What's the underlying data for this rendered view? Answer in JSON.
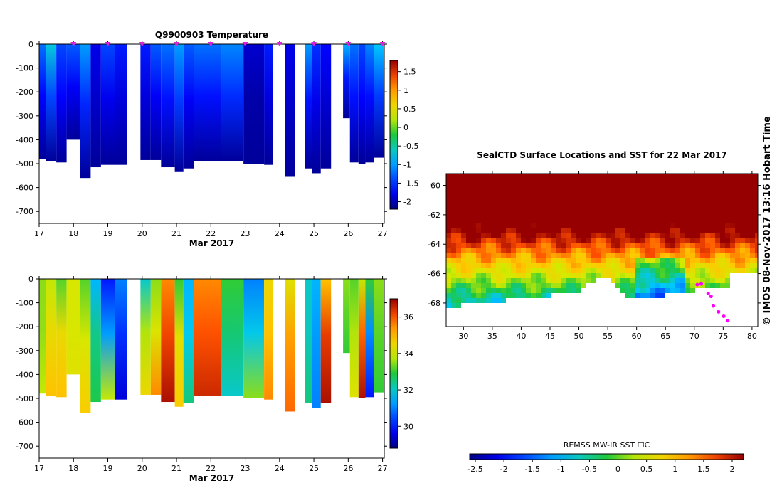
{
  "chart_data": [
    {
      "type": "heatmap",
      "title": "Q9900903  Temperature",
      "xlabel": "Mar 2017",
      "ylabel": "",
      "xlim": [
        17,
        27.05
      ],
      "ylim": [
        -750,
        0
      ],
      "x_ticks": [
        "17",
        "18",
        "19",
        "20",
        "21",
        "22",
        "23",
        "24",
        "25",
        "26",
        "27"
      ],
      "y_ticks": [
        "0",
        "-100",
        "-200",
        "-300",
        "-400",
        "-500",
        "-600",
        "-700"
      ],
      "colorbar_ticks": [
        "1.5",
        "1",
        "0.5",
        "0",
        "-0.5",
        "-1",
        "-1.5",
        "-2"
      ],
      "colorbar_range": [
        -2.2,
        1.8
      ],
      "profile_markers_day": [
        18,
        19,
        20,
        21,
        22,
        23,
        24,
        25,
        26,
        27
      ],
      "profiles": [
        {
          "x0": 17.0,
          "x1": 17.2,
          "depth": 480,
          "surf": -1.2,
          "deep": -2.1
        },
        {
          "x0": 17.2,
          "x1": 17.5,
          "depth": 490,
          "surf": -0.7,
          "deep": -2.1
        },
        {
          "x0": 17.5,
          "x1": 17.8,
          "depth": 495,
          "surf": -1.4,
          "deep": -2.1
        },
        {
          "x0": 17.8,
          "x1": 18.2,
          "depth": 400,
          "surf": -1.3,
          "deep": -2.1
        },
        {
          "x0": 18.2,
          "x1": 18.5,
          "depth": 560,
          "surf": -1.0,
          "deep": -2.1
        },
        {
          "x0": 18.5,
          "x1": 18.8,
          "depth": 515,
          "surf": -1.8,
          "deep": -2.1
        },
        {
          "x0": 18.8,
          "x1": 19.2,
          "depth": 505,
          "surf": -1.4,
          "deep": -2.1
        },
        {
          "x0": 19.2,
          "x1": 19.55,
          "depth": 505,
          "surf": -1.6,
          "deep": -2.1
        },
        {
          "x0": 19.95,
          "x1": 20.25,
          "depth": 485,
          "surf": -1.6,
          "deep": -2.1
        },
        {
          "x0": 20.25,
          "x1": 20.55,
          "depth": 485,
          "surf": -1.3,
          "deep": -2.1
        },
        {
          "x0": 20.55,
          "x1": 20.95,
          "depth": 515,
          "surf": -1.2,
          "deep": -2.1
        },
        {
          "x0": 20.95,
          "x1": 21.2,
          "depth": 535,
          "surf": -1.0,
          "deep": -2.1
        },
        {
          "x0": 21.2,
          "x1": 21.5,
          "depth": 520,
          "surf": -1.3,
          "deep": -2.1
        },
        {
          "x0": 21.5,
          "x1": 22.3,
          "depth": 490,
          "surf": -1.2,
          "deep": -2.1
        },
        {
          "x0": 22.3,
          "x1": 22.95,
          "depth": 490,
          "surf": -1.1,
          "deep": -2.1
        },
        {
          "x0": 22.95,
          "x1": 23.55,
          "depth": 500,
          "surf": -1.9,
          "deep": -2.1
        },
        {
          "x0": 23.55,
          "x1": 23.8,
          "depth": 505,
          "surf": -1.6,
          "deep": -2.1
        },
        {
          "x0": 24.15,
          "x1": 24.45,
          "depth": 555,
          "surf": -1.8,
          "deep": -2.1
        },
        {
          "x0": 24.75,
          "x1": 24.95,
          "depth": 520,
          "surf": -1.0,
          "deep": -2.1
        },
        {
          "x0": 24.95,
          "x1": 25.2,
          "depth": 540,
          "surf": -1.5,
          "deep": -2.1
        },
        {
          "x0": 25.2,
          "x1": 25.5,
          "depth": 520,
          "surf": -1.7,
          "deep": -2.1
        },
        {
          "x0": 25.85,
          "x1": 26.05,
          "depth": 310,
          "surf": -0.9,
          "deep": -2.1
        },
        {
          "x0": 26.05,
          "x1": 26.3,
          "depth": 495,
          "surf": -1.2,
          "deep": -2.1
        },
        {
          "x0": 26.3,
          "x1": 26.5,
          "depth": 500,
          "surf": -1.4,
          "deep": -2.1
        },
        {
          "x0": 26.5,
          "x1": 26.75,
          "depth": 495,
          "surf": -1.1,
          "deep": -2.1
        },
        {
          "x0": 26.75,
          "x1": 27.05,
          "depth": 475,
          "surf": -0.8,
          "deep": -2.1
        }
      ]
    },
    {
      "type": "heatmap",
      "title": "",
      "xlabel": "Mar 2017",
      "ylabel": "",
      "xlim": [
        17,
        27.05
      ],
      "ylim": [
        -750,
        0
      ],
      "x_ticks": [
        "17",
        "18",
        "19",
        "20",
        "21",
        "22",
        "23",
        "24",
        "25",
        "26",
        "27"
      ],
      "y_ticks": [
        "0",
        "-100",
        "-200",
        "-300",
        "-400",
        "-500",
        "-600",
        "-700"
      ],
      "colorbar_ticks": [
        "36",
        "34",
        "32",
        "30"
      ],
      "colorbar_range": [
        28.8,
        37.0
      ],
      "profiles": [
        {
          "x0": 17.0,
          "x1": 17.2,
          "depth": 480,
          "surf": 33.5,
          "deep": 33.8
        },
        {
          "x0": 17.2,
          "x1": 17.5,
          "depth": 490,
          "surf": 33.8,
          "deep": 35.0
        },
        {
          "x0": 17.5,
          "x1": 17.8,
          "depth": 495,
          "surf": 33.2,
          "deep": 35.0
        },
        {
          "x0": 17.8,
          "x1": 18.2,
          "depth": 400,
          "surf": 34.0,
          "deep": 34.2
        },
        {
          "x0": 18.2,
          "x1": 18.5,
          "depth": 560,
          "surf": 33.2,
          "deep": 34.8
        },
        {
          "x0": 18.5,
          "x1": 18.8,
          "depth": 515,
          "surf": 31.5,
          "deep": 32.8
        },
        {
          "x0": 18.8,
          "x1": 19.2,
          "depth": 505,
          "surf": 30.0,
          "deep": 33.8
        },
        {
          "x0": 19.2,
          "x1": 19.55,
          "depth": 505,
          "surf": 31.0,
          "deep": 29.5
        },
        {
          "x0": 19.95,
          "x1": 20.25,
          "depth": 485,
          "surf": 32.0,
          "deep": 34.5
        },
        {
          "x0": 20.25,
          "x1": 20.55,
          "depth": 485,
          "surf": 33.5,
          "deep": 35.5
        },
        {
          "x0": 20.55,
          "x1": 20.95,
          "depth": 515,
          "surf": 35.5,
          "deep": 36.8
        },
        {
          "x0": 20.95,
          "x1": 21.2,
          "depth": 535,
          "surf": 33.0,
          "deep": 34.8
        },
        {
          "x0": 21.2,
          "x1": 21.5,
          "depth": 520,
          "surf": 31.5,
          "deep": 32.5
        },
        {
          "x0": 21.5,
          "x1": 22.3,
          "depth": 490,
          "surf": 35.5,
          "deep": 36.5
        },
        {
          "x0": 22.3,
          "x1": 22.95,
          "depth": 490,
          "surf": 33.0,
          "deep": 32.0
        },
        {
          "x0": 22.95,
          "x1": 23.55,
          "depth": 500,
          "surf": 31.0,
          "deep": 33.5
        },
        {
          "x0": 23.55,
          "x1": 23.8,
          "depth": 505,
          "surf": 34.5,
          "deep": 35.5
        },
        {
          "x0": 24.15,
          "x1": 24.45,
          "depth": 555,
          "surf": 34.2,
          "deep": 35.8
        },
        {
          "x0": 24.75,
          "x1": 24.95,
          "depth": 520,
          "surf": 32.0,
          "deep": 32.5
        },
        {
          "x0": 24.95,
          "x1": 25.2,
          "depth": 540,
          "surf": 31.5,
          "deep": 31.0
        },
        {
          "x0": 25.2,
          "x1": 25.5,
          "depth": 520,
          "surf": 35.0,
          "deep": 36.8
        },
        {
          "x0": 25.85,
          "x1": 26.05,
          "depth": 310,
          "surf": 33.5,
          "deep": 33.0
        },
        {
          "x0": 26.05,
          "x1": 26.3,
          "depth": 495,
          "surf": 33.2,
          "deep": 34.2
        },
        {
          "x0": 26.3,
          "x1": 26.5,
          "depth": 500,
          "surf": 33.8,
          "deep": 36.8
        },
        {
          "x0": 26.5,
          "x1": 26.75,
          "depth": 495,
          "surf": 33.0,
          "deep": 30.0
        },
        {
          "x0": 26.75,
          "x1": 27.05,
          "depth": 475,
          "surf": 33.5,
          "deep": 33.0
        }
      ]
    },
    {
      "type": "heatmap",
      "title": "SealCTD Surface Locations and SST for 22 Mar 2017",
      "xlabel": "",
      "ylabel": "",
      "xlim": [
        27,
        81
      ],
      "ylim": [
        -69.6,
        -59.2
      ],
      "x_ticks": [
        "30",
        "35",
        "40",
        "45",
        "50",
        "55",
        "60",
        "65",
        "70",
        "75",
        "80"
      ],
      "y_ticks": [
        "-60",
        "-62",
        "-64",
        "-66",
        "-68"
      ],
      "colorbar_label": "REMSS MW-IR SST ☐C",
      "colorbar_ticks": [
        "-2.5",
        "-2",
        "-1.5",
        "-1",
        "-0.5",
        "0",
        "0.5",
        "1",
        "1.5",
        "2"
      ],
      "colorbar_range": [
        -2.6,
        2.2
      ],
      "seal_locations_lon_lat": [
        [
          72.4,
          -67.35
        ],
        [
          72.9,
          -67.55
        ],
        [
          73.3,
          -68.2
        ],
        [
          74.2,
          -68.6
        ],
        [
          75.1,
          -68.9
        ],
        [
          75.8,
          -69.2
        ],
        [
          71.2,
          -66.7
        ],
        [
          70.5,
          -66.75
        ]
      ]
    }
  ],
  "credit": "©  IMOS 08-Nov-2017 13:16 Hobart Time"
}
